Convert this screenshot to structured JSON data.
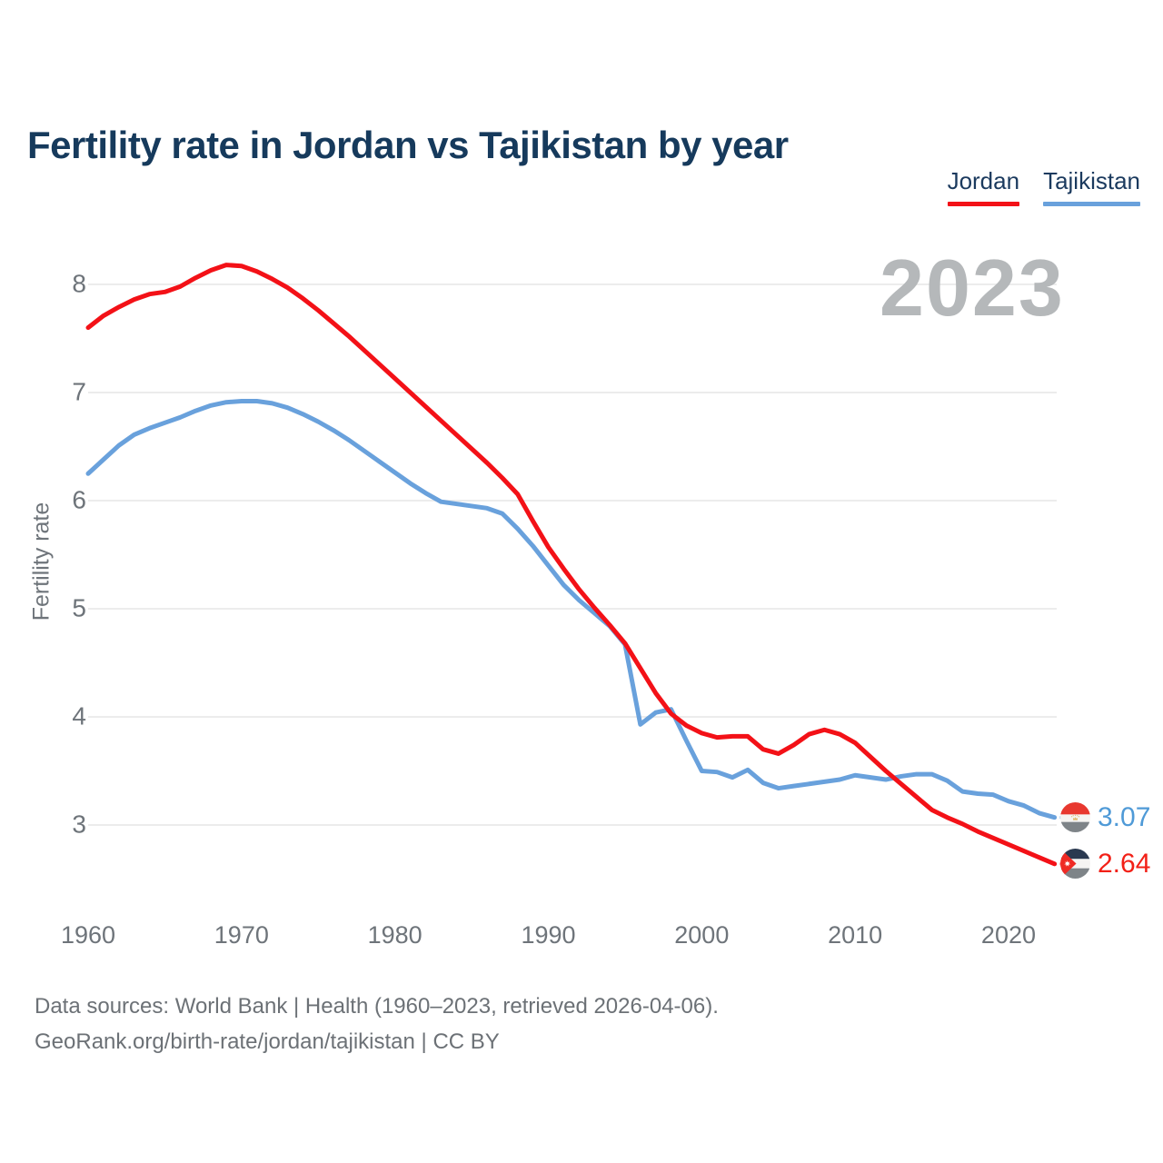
{
  "header": {
    "title": "Fertility rate in Jordan vs Tajikistan by year"
  },
  "legend": {
    "items": [
      {
        "label": "Jordan",
        "color": "#f31117"
      },
      {
        "label": "Tajikistan",
        "color": "#69a1dc"
      }
    ]
  },
  "watermark": {
    "text": "2023"
  },
  "y_axis": {
    "label": "Fertility rate",
    "ticks": [
      8,
      7,
      6,
      5,
      4,
      3
    ]
  },
  "x_axis": {
    "ticks": [
      1960,
      1970,
      1980,
      1990,
      2000,
      2010,
      2020
    ]
  },
  "end_labels": {
    "tajikistan": {
      "value": "3.07",
      "flag": "tajikistan-flag",
      "color": "#4f9ad7"
    },
    "jordan": {
      "value": "2.64",
      "flag": "jordan-flag",
      "color": "#f22017"
    }
  },
  "footer": {
    "line1": "Data sources: World Bank | Health (1960–2023, retrieved 2026-04-06).",
    "line2": "GeoRank.org/birth-rate/jordan/tajikistan | CC BY"
  },
  "chart_data": {
    "type": "line",
    "title": "Fertility rate in Jordan vs Tajikistan by year",
    "xlabel": "",
    "ylabel": "Fertility rate",
    "ylim": [
      2.5,
      8.5
    ],
    "yticks": [
      3,
      4,
      5,
      6,
      7,
      8
    ],
    "xticks": [
      1960,
      1970,
      1980,
      1990,
      2000,
      2010,
      2020
    ],
    "grid": "horizontal",
    "legend_position": "top-right",
    "x": [
      1960,
      1961,
      1962,
      1963,
      1964,
      1965,
      1966,
      1967,
      1968,
      1969,
      1970,
      1971,
      1972,
      1973,
      1974,
      1975,
      1976,
      1977,
      1978,
      1979,
      1980,
      1981,
      1982,
      1983,
      1984,
      1985,
      1986,
      1987,
      1988,
      1989,
      1990,
      1991,
      1992,
      1993,
      1994,
      1995,
      1996,
      1997,
      1998,
      1999,
      2000,
      2001,
      2002,
      2003,
      2004,
      2005,
      2006,
      2007,
      2008,
      2009,
      2010,
      2011,
      2012,
      2013,
      2014,
      2015,
      2016,
      2017,
      2018,
      2019,
      2020,
      2021,
      2022,
      2023
    ],
    "series": [
      {
        "name": "Jordan",
        "color": "#f31117",
        "end_value": 2.64,
        "values": [
          7.6,
          7.71,
          7.79,
          7.86,
          7.91,
          7.93,
          7.98,
          8.06,
          8.13,
          8.18,
          8.17,
          8.12,
          8.05,
          7.97,
          7.87,
          7.76,
          7.64,
          7.52,
          7.39,
          7.26,
          7.13,
          7.0,
          6.87,
          6.74,
          6.61,
          6.48,
          6.35,
          6.21,
          6.06,
          5.81,
          5.57,
          5.37,
          5.18,
          5.01,
          4.85,
          4.68,
          4.45,
          4.22,
          4.03,
          3.92,
          3.85,
          3.81,
          3.82,
          3.82,
          3.7,
          3.66,
          3.74,
          3.84,
          3.88,
          3.84,
          3.76,
          3.63,
          3.5,
          3.38,
          3.26,
          3.14,
          3.07,
          3.01,
          2.94,
          2.88,
          2.82,
          2.76,
          2.7,
          2.64
        ]
      },
      {
        "name": "Tajikistan",
        "color": "#69a1dc",
        "end_value": 3.07,
        "values": [
          6.25,
          6.38,
          6.51,
          6.61,
          6.67,
          6.72,
          6.77,
          6.83,
          6.88,
          6.91,
          6.92,
          6.92,
          6.9,
          6.86,
          6.8,
          6.73,
          6.65,
          6.56,
          6.46,
          6.36,
          6.26,
          6.16,
          6.07,
          5.99,
          5.97,
          5.95,
          5.93,
          5.88,
          5.74,
          5.58,
          5.4,
          5.22,
          5.08,
          4.96,
          4.84,
          4.67,
          3.93,
          4.04,
          4.07,
          3.78,
          3.5,
          3.49,
          3.44,
          3.51,
          3.39,
          3.34,
          3.36,
          3.38,
          3.4,
          3.42,
          3.46,
          3.44,
          3.42,
          3.45,
          3.47,
          3.47,
          3.41,
          3.31,
          3.29,
          3.28,
          3.22,
          3.18,
          3.11,
          3.07
        ]
      }
    ]
  }
}
